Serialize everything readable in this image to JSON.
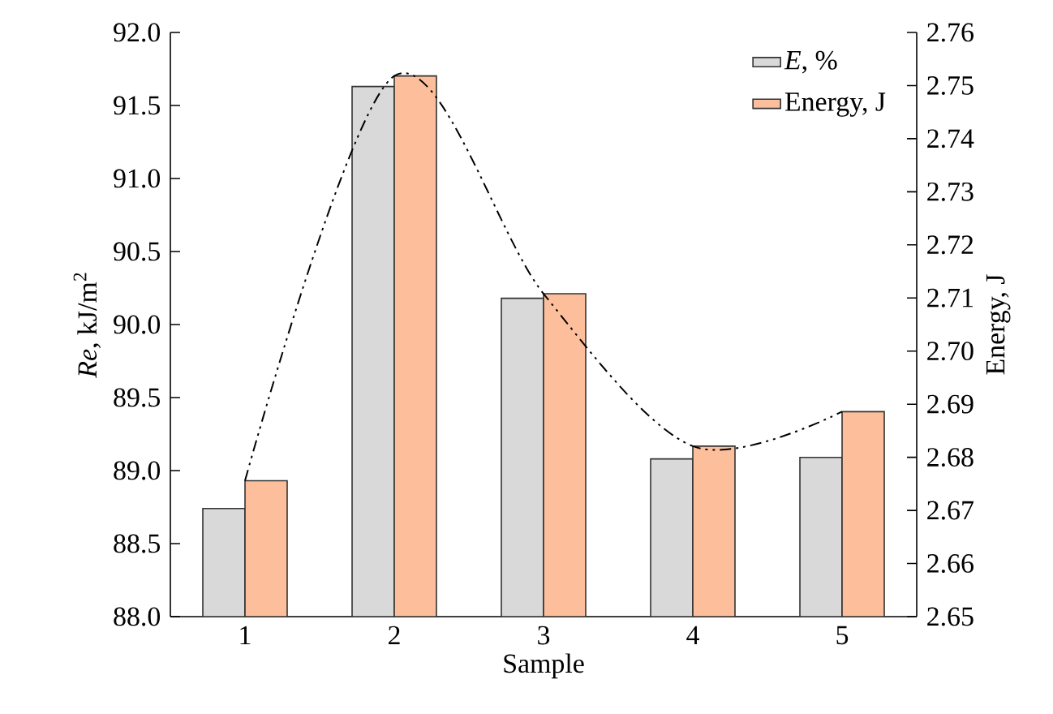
{
  "chart_data": {
    "type": "bar",
    "xlabel": "Sample",
    "ylabel": "*Re*, kJ/m$^{2}$",
    "y2label": "Energy, J",
    "categories": [
      "1",
      "2",
      "3",
      "4",
      "5"
    ],
    "series": [
      {
        "name": "*E*, %",
        "color": "#d9d9d9",
        "values": [
          88.74,
          91.63,
          90.18,
          89.08,
          89.09
        ]
      },
      {
        "name": "Energy, J",
        "color": "#fdbf9b",
        "axis": "y2",
        "values": [
          2.6756,
          2.7518,
          2.7108,
          2.6821,
          2.6886
        ]
      },
      {
        "type": "line",
        "color": "#000000",
        "axis": "y2",
        "line_style": "dashed",
        "values": [
          2.6756,
          2.7518,
          2.7108,
          2.6821,
          2.6886
        ]
      }
    ],
    "ylim": [
      88,
      92
    ],
    "yticks": [
      {
        "value": 88,
        "label": "88.0"
      },
      88.5,
      {
        "value": 89,
        "label": "89.0"
      },
      89.5,
      {
        "value": 90,
        "label": "90.0"
      },
      90.5,
      {
        "value": 91,
        "label": "91.0"
      },
      91.5,
      {
        "value": 92,
        "label": "92.0"
      }
    ],
    "y2lim": [
      2.65,
      2.76
    ],
    "y2ticks": [
      2.65,
      2.66,
      2.67,
      2.68,
      2.69,
      {
        "value": 2.7,
        "label": "2.70"
      },
      2.71,
      2.72,
      2.73,
      2.74,
      2.75,
      2.76
    ],
    "legend": "top right",
    "marker": "none"
  }
}
